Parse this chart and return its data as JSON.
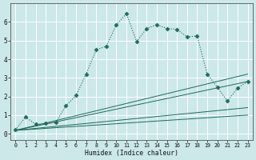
{
  "title": "",
  "xlabel": "Humidex (Indice chaleur)",
  "bg_color": "#cce8e8",
  "grid_color": "#ffffff",
  "line_color": "#1e6b5a",
  "xlim": [
    -0.5,
    23.5
  ],
  "ylim": [
    -0.35,
    7.0
  ],
  "xticks": [
    0,
    1,
    2,
    3,
    4,
    5,
    6,
    7,
    8,
    9,
    10,
    11,
    12,
    13,
    14,
    15,
    16,
    17,
    18,
    19,
    20,
    21,
    22,
    23
  ],
  "yticks": [
    0,
    1,
    2,
    3,
    4,
    5,
    6
  ],
  "main_x": [
    0,
    1,
    2,
    3,
    4,
    5,
    6,
    7,
    8,
    9,
    10,
    11,
    12,
    13,
    14,
    15,
    16,
    17,
    18,
    19,
    20,
    21,
    22,
    23
  ],
  "main_y": [
    0.2,
    0.9,
    0.5,
    0.55,
    0.6,
    1.5,
    2.05,
    3.2,
    4.5,
    4.7,
    5.85,
    6.45,
    4.95,
    5.65,
    5.85,
    5.65,
    5.6,
    5.2,
    5.25,
    3.2,
    2.5,
    1.75,
    2.45,
    2.8
  ],
  "ref_lines": [
    {
      "x": [
        0,
        23
      ],
      "y": [
        0.18,
        3.2
      ]
    },
    {
      "x": [
        0,
        23
      ],
      "y": [
        0.18,
        2.8
      ]
    },
    {
      "x": [
        0,
        23
      ],
      "y": [
        0.18,
        1.4
      ]
    },
    {
      "x": [
        0,
        23
      ],
      "y": [
        0.18,
        1.0
      ]
    }
  ]
}
